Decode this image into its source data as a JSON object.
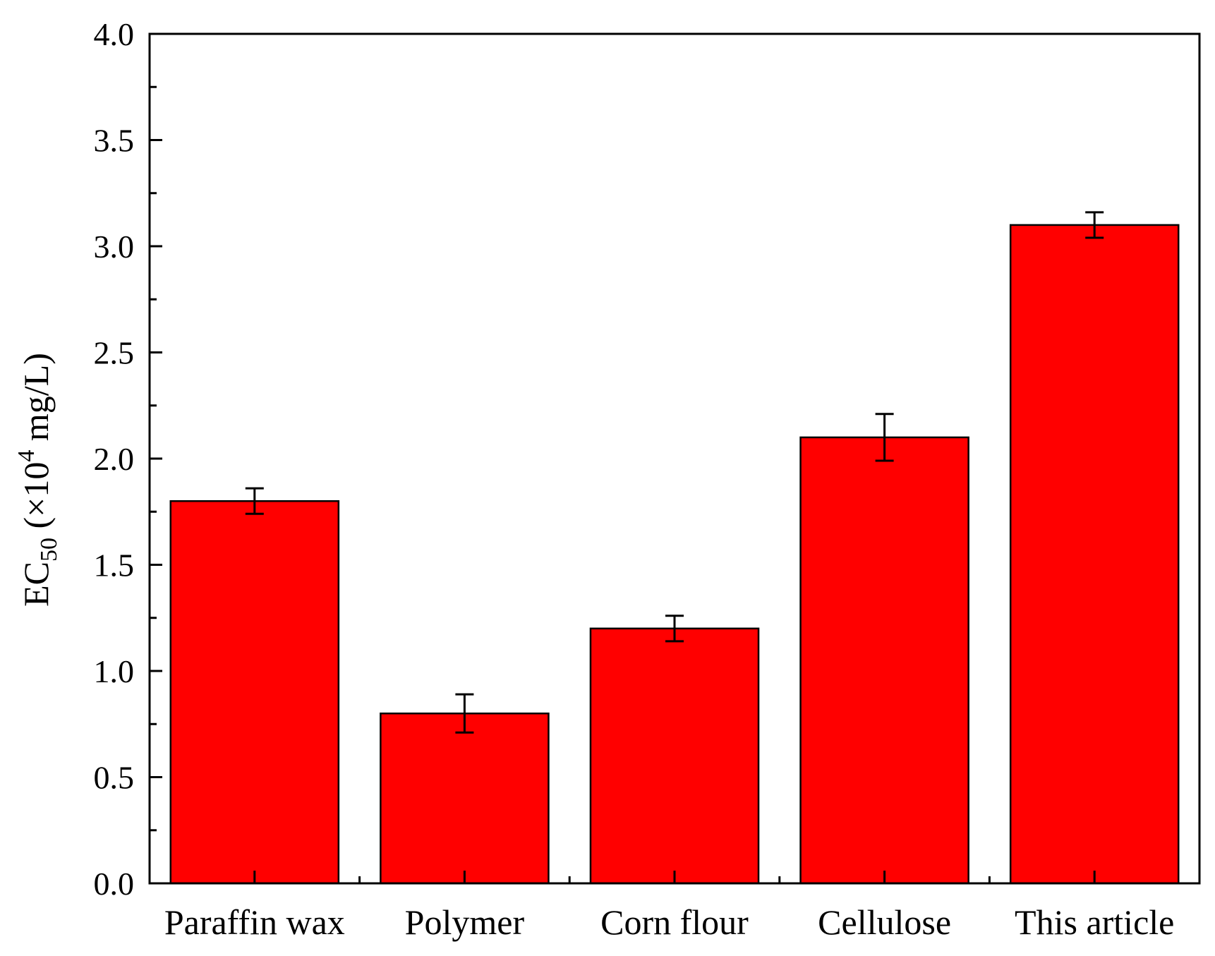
{
  "chart_data": {
    "type": "bar",
    "title": "",
    "xlabel": "",
    "ylabel": {
      "main": "EC",
      "subscript": "50",
      "unit_prefix": " (×10",
      "superscript": "4",
      "unit_suffix": " mg/L)"
    },
    "categories": [
      "Paraffin wax",
      "Polymer",
      "Corn flour",
      "Cellulose",
      "This article"
    ],
    "values": [
      1.8,
      0.8,
      1.2,
      2.1,
      3.1
    ],
    "errors": [
      0.06,
      0.09,
      0.06,
      0.11,
      0.06
    ],
    "ylim": [
      0.0,
      4.0
    ],
    "yticks": [
      "0.0",
      "0.5",
      "1.0",
      "1.5",
      "2.0",
      "2.5",
      "3.0",
      "3.5",
      "4.0"
    ],
    "bar_color": "#ff0000",
    "edge_color": "#000000",
    "grid": false
  }
}
